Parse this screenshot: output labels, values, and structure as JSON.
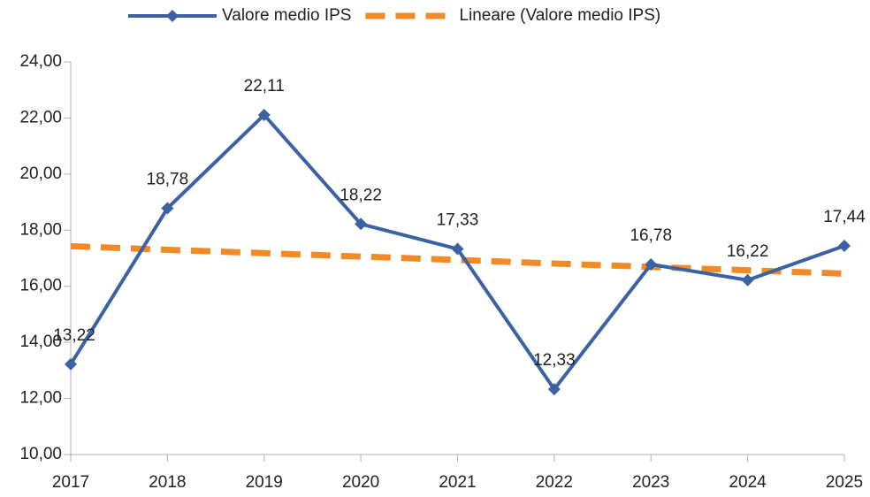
{
  "chart_data": {
    "type": "line",
    "categories": [
      "2017",
      "2018",
      "2019",
      "2020",
      "2021",
      "2022",
      "2023",
      "2024",
      "2025"
    ],
    "series": [
      {
        "name": "Valore medio IPS",
        "color": "#3a62a4",
        "style": "solid",
        "marker": "diamond",
        "values": [
          13.22,
          18.78,
          22.11,
          18.22,
          17.33,
          12.33,
          16.78,
          16.22,
          17.44
        ],
        "value_labels": [
          "13,22",
          "18,78",
          "22,11",
          "18,22",
          "17,33",
          "12,33",
          "16,78",
          "16,22",
          "17,44"
        ]
      },
      {
        "name": "Lineare (Valore medio IPS)",
        "color": "#f28a25",
        "style": "dashed",
        "values": [
          17.43,
          17.3,
          17.18,
          17.06,
          16.94,
          16.81,
          16.69,
          16.57,
          16.45
        ]
      }
    ],
    "ylim": [
      10,
      24
    ],
    "yticks": [
      {
        "value": 10,
        "label": "10,00"
      },
      {
        "value": 12,
        "label": "12,00"
      },
      {
        "value": 14,
        "label": "14,00"
      },
      {
        "value": 16,
        "label": "16,00"
      },
      {
        "value": 18,
        "label": "18,00"
      },
      {
        "value": 20,
        "label": "20,00"
      },
      {
        "value": 22,
        "label": "22,00"
      },
      {
        "value": 24,
        "label": "24,00"
      }
    ],
    "grid": false,
    "legend": "top"
  }
}
